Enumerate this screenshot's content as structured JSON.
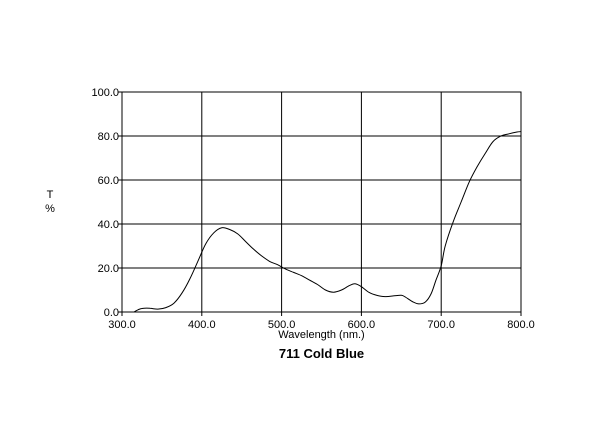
{
  "chart_data": {
    "type": "line",
    "title": "711 Cold Blue",
    "xlabel": "Wavelength (nm.)",
    "ylabel": "T %",
    "ylabel_parts": [
      "T",
      "%"
    ],
    "xlim": [
      300,
      800
    ],
    "ylim": [
      0,
      100
    ],
    "x_ticks": [
      "300.0",
      "400.0",
      "500.0",
      "600.0",
      "700.0",
      "800.0"
    ],
    "y_ticks": [
      "0.0",
      "20.0",
      "40.0",
      "60.0",
      "80.0",
      "100.0"
    ],
    "grid": true,
    "series": [
      {
        "x": [
          315,
          320,
          325,
          335,
          345,
          355,
          365,
          375,
          385,
          395,
          405,
          415,
          425,
          435,
          445,
          455,
          465,
          475,
          485,
          495,
          505,
          515,
          525,
          535,
          545,
          555,
          565,
          575,
          585,
          592,
          600,
          610,
          620,
          630,
          640,
          650,
          655,
          665,
          672,
          680,
          687,
          693,
          700,
          705,
          715,
          725,
          735,
          745,
          755,
          765,
          775,
          785,
          795,
          800
        ],
        "y": [
          0.0,
          1.0,
          1.6,
          1.7,
          1.3,
          2.0,
          4.0,
          8.5,
          15.0,
          23.0,
          31.0,
          36.0,
          38.3,
          37.5,
          35.5,
          32.0,
          28.5,
          25.5,
          23.0,
          21.5,
          19.5,
          18.0,
          16.5,
          14.5,
          12.5,
          10.0,
          9.0,
          10.0,
          12.0,
          12.8,
          11.5,
          8.8,
          7.5,
          7.0,
          7.3,
          7.6,
          6.8,
          4.5,
          3.7,
          4.5,
          8.0,
          14.0,
          21.0,
          30.0,
          41.0,
          50.0,
          59.0,
          66.0,
          72.0,
          77.5,
          80.0,
          81.0,
          81.8,
          82.0
        ]
      }
    ]
  }
}
